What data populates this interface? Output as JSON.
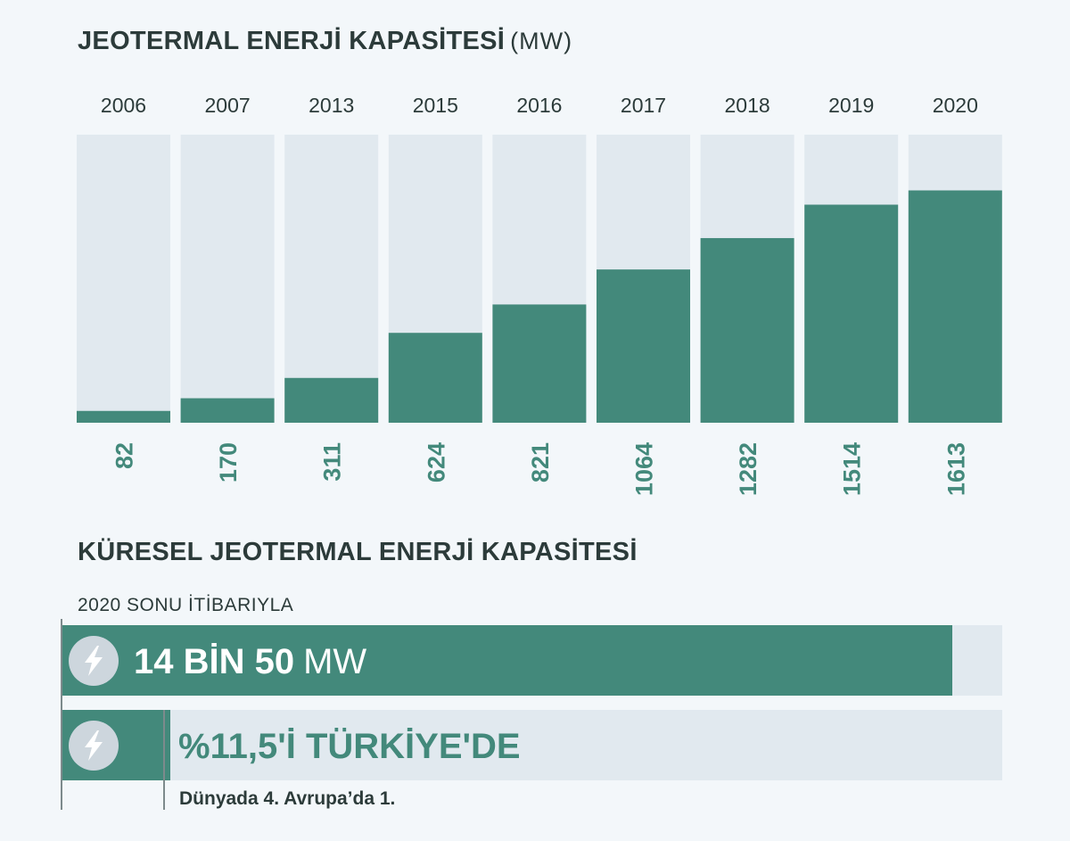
{
  "chart_data": {
    "type": "bar",
    "title": "JEOTERMAL ENERJİ KAPASİTESİ",
    "unit": "(MW)",
    "categories": [
      "2006",
      "2007",
      "2013",
      "2015",
      "2016",
      "2017",
      "2018",
      "2019",
      "2020"
    ],
    "values": [
      82,
      170,
      311,
      624,
      821,
      1064,
      1282,
      1514,
      1613
    ],
    "ylim": [
      0,
      2000
    ],
    "grid": false,
    "colors": {
      "bar": "#43897b",
      "track": "#e1e9ef",
      "label": "#43897b",
      "category": "#2c3b3a"
    }
  },
  "global": {
    "title": "KÜRESEL JEOTERMAL ENERJİ KAPASİTESİ",
    "subtitle": "2020 SONU İTİBARIYLA",
    "total_number": "14 BİN 50",
    "total_unit": "MW",
    "total_fill_fraction": 0.947,
    "turkey_share_text": "%11,5'İ TÜRKİYE'DE",
    "turkey_share_fraction": 0.115,
    "ranking_text": "Dünyada 4. Avrupa’da 1.",
    "icon": "lightning-bolt-icon"
  }
}
